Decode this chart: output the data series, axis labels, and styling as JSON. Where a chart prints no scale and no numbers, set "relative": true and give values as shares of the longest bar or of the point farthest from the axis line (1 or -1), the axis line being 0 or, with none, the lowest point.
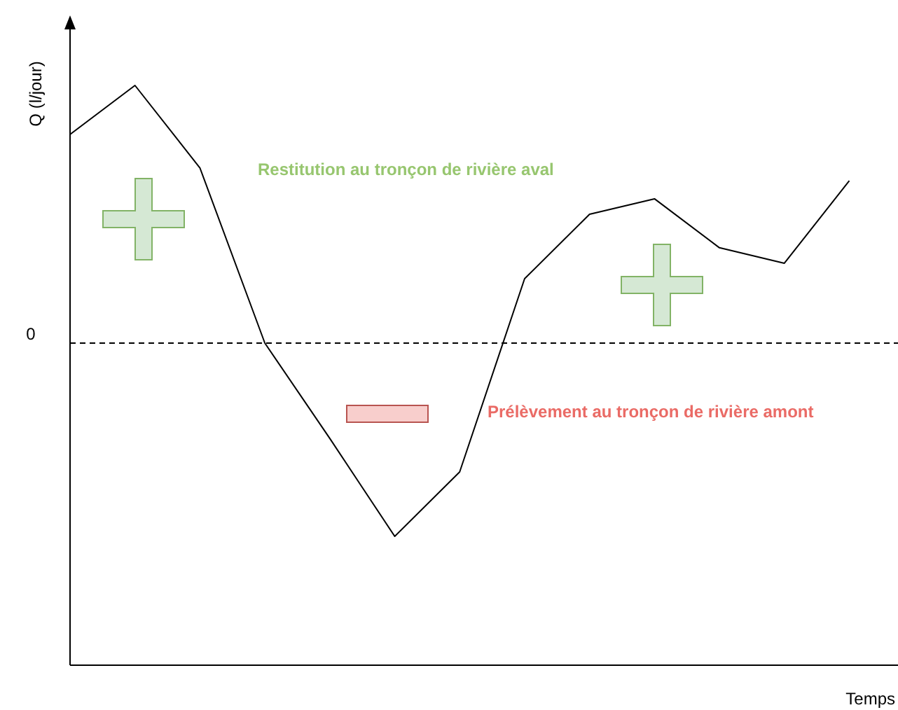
{
  "chart_data": {
    "type": "line",
    "relative": true,
    "ylabel": "Q (l/jour)",
    "categories": [
      null,
      null,
      null,
      null,
      null,
      null,
      null,
      null,
      null,
      null,
      null,
      null,
      null
    ],
    "series": [
      {
        "color": "#000000",
        "values": [
          0.81,
          1,
          0.68,
          0,
          -0.37,
          -0.75,
          -0.5,
          0.25,
          0.5,
          0.56,
          0.37,
          0.31,
          0.63
        ]
      }
    ],
    "ref_lines": [
      {
        "axis": "y",
        "value": 0,
        "label": "0",
        "line_style": "dashed",
        "color": "#000000"
      }
    ],
    "annotations": [
      "Restitution au tronçon de rivière aval",
      "Prélèvement au tronçon de rivière amont",
      "Temps"
    ],
    "grid": false,
    "legend": false,
    "marker": "none",
    "line_style": "solid"
  }
}
